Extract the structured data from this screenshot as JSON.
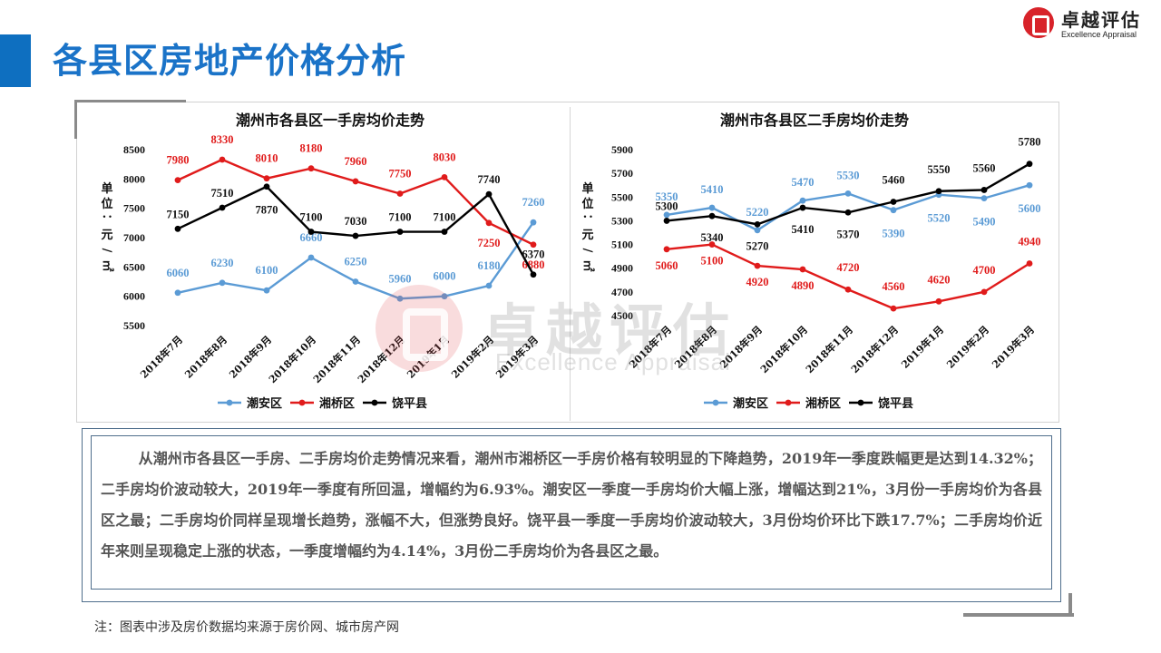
{
  "page": {
    "title": "各县区房地产价格分析"
  },
  "logo": {
    "name": "卓越评估",
    "en": "Excellence Appraisal"
  },
  "watermark": {
    "name": "卓越评估",
    "en": "Excellence Appraisal"
  },
  "colors": {
    "chaoan": "#5b9bd5",
    "xiangqiao": "#e01b1b",
    "raoping": "#000000",
    "title_blue": "#1a73c8"
  },
  "chart_data": [
    {
      "type": "line",
      "title": "潮州市各县区一手房均价走势",
      "ylabel": "单位：元/㎡",
      "ylim": [
        5500,
        8500
      ],
      "yticks": [
        5500,
        6000,
        6500,
        7000,
        7500,
        8000,
        8500
      ],
      "categories": [
        "2018年7月",
        "2018年8月",
        "2018年9月",
        "2018年10月",
        "2018年11月",
        "2018年12月",
        "2019年1月",
        "2019年2月",
        "2019年3月"
      ],
      "series": [
        {
          "name": "潮安区",
          "color": "#5b9bd5",
          "values": [
            6060,
            6230,
            6100,
            6660,
            6250,
            5960,
            6000,
            6180,
            7260
          ]
        },
        {
          "name": "湘桥区",
          "color": "#e01b1b",
          "values": [
            7980,
            8330,
            8010,
            8180,
            7960,
            7750,
            8030,
            7250,
            6880
          ]
        },
        {
          "name": "饶平县",
          "color": "#000000",
          "values": [
            7150,
            7510,
            7870,
            7100,
            7030,
            7100,
            7100,
            7740,
            6370
          ]
        }
      ],
      "legend": "bottom"
    },
    {
      "type": "line",
      "title": "潮州市各县区二手房均价走势",
      "ylabel": "单位：元/㎡",
      "ylim": [
        4500,
        5900
      ],
      "yticks": [
        4500,
        4700,
        4900,
        5100,
        5300,
        5500,
        5700,
        5900
      ],
      "categories": [
        "2018年7月",
        "2018年8月",
        "2018年9月",
        "2018年10月",
        "2018年11月",
        "2018年12月",
        "2019年1月",
        "2019年2月",
        "2019年3月"
      ],
      "series": [
        {
          "name": "潮安区",
          "color": "#5b9bd5",
          "values": [
            5350,
            5410,
            5220,
            5470,
            5530,
            5390,
            5520,
            5490,
            5600
          ]
        },
        {
          "name": "湘桥区",
          "color": "#e01b1b",
          "values": [
            5060,
            5100,
            4920,
            4890,
            4720,
            4560,
            4620,
            4700,
            4940
          ]
        },
        {
          "name": "饶平县",
          "color": "#000000",
          "values": [
            5300,
            5340,
            5270,
            5410,
            5370,
            5460,
            5550,
            5560,
            5780
          ]
        }
      ],
      "legend": "bottom"
    }
  ],
  "analysis": {
    "text": "从潮州市各县区一手房、二手房均价走势情况来看，潮州市湘桥区一手房价格有较明显的下降趋势，2019年一季度跌幅更是达到14.32%；二手房均价波动较大，2019年一季度有所回温，增幅约为6.93%。潮安区一季度一手房均价大幅上涨，增幅达到21%，3月份一手房均价为各县区之最；二手房均价同样呈现增长趋势，涨幅不大，但涨势良好。饶平县一季度一手房均价波动较大，3月份均价环比下跌17.7%；二手房均价近年来则呈现稳定上涨的状态，一季度增幅约为4.14%，3月份二手房均价为各县区之最。"
  },
  "note": "注：图表中涉及房价数据均来源于房价网、城市房产网"
}
